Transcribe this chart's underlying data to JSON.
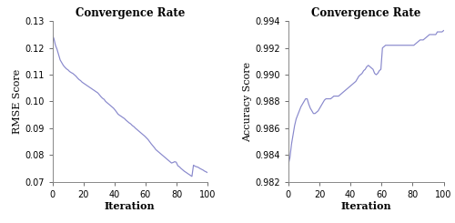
{
  "title": "Convergence Rate",
  "left_ylabel": "RMSE Score",
  "right_ylabel": "Accuracy Score",
  "xlabel": "Iteration",
  "line_color": "#8888cc",
  "left_ylim": [
    0.07,
    0.13
  ],
  "right_ylim": [
    0.982,
    0.994
  ],
  "left_yticks": [
    0.07,
    0.08,
    0.09,
    0.1,
    0.11,
    0.12,
    0.13
  ],
  "right_yticks": [
    0.982,
    0.984,
    0.986,
    0.988,
    0.99,
    0.992,
    0.994
  ],
  "xlim": [
    0,
    100
  ],
  "xticks": [
    0,
    20,
    40,
    60,
    80,
    100
  ],
  "rmse_y": [
    0.125,
    0.1235,
    0.122,
    0.12,
    0.1185,
    0.117,
    0.1155,
    0.1145,
    0.1135,
    0.113,
    0.1125,
    0.112,
    0.1115,
    0.111,
    0.1105,
    0.11,
    0.1095,
    0.1085,
    0.1075,
    0.107,
    0.1065,
    0.106,
    0.1055,
    0.105,
    0.1045,
    0.104,
    0.1035,
    0.103,
    0.102,
    0.101,
    0.1005,
    0.1,
    0.0995,
    0.099,
    0.0985,
    0.098,
    0.097,
    0.096,
    0.0955,
    0.095,
    0.0945,
    0.094,
    0.0935,
    0.093,
    0.0925,
    0.092,
    0.0915,
    0.091,
    0.09,
    0.0895,
    0.089,
    0.0885,
    0.088,
    0.0875,
    0.087,
    0.086,
    0.085,
    0.0845,
    0.084,
    0.0835,
    0.083,
    0.0825,
    0.082,
    0.0815,
    0.081,
    0.0805,
    0.08,
    0.0795,
    0.079,
    0.0785,
    0.078,
    0.0775,
    0.077,
    0.0765,
    0.076,
    0.0755,
    0.075,
    0.0765,
    0.077,
    0.0765,
    0.076,
    0.0755,
    0.075,
    0.0745,
    0.074,
    0.0735,
    0.073,
    0.0728,
    0.0726,
    0.0724,
    0.076,
    0.0758,
    0.0756,
    0.0754,
    0.0752,
    0.075,
    0.0748,
    0.0745,
    0.074,
    0.0737
  ],
  "acc_y": [
    0.9833,
    0.9838,
    0.9845,
    0.9852,
    0.9858,
    0.9863,
    0.9867,
    0.987,
    0.9872,
    0.9875,
    0.9877,
    0.9879,
    0.988,
    0.9878,
    0.9876,
    0.9874,
    0.9872,
    0.9871,
    0.9872,
    0.9873,
    0.9875,
    0.9877,
    0.9879,
    0.9881,
    0.9882,
    0.9882,
    0.9882,
    0.9882,
    0.9883,
    0.9883,
    0.9884,
    0.9884,
    0.9884,
    0.9884,
    0.9885,
    0.9886,
    0.9887,
    0.9887,
    0.9888,
    0.9889,
    0.989,
    0.9891,
    0.9892,
    0.9893,
    0.9895,
    0.9897,
    0.9899,
    0.9901,
    0.9902,
    0.9903,
    0.9904,
    0.9906,
    0.9906,
    0.9905,
    0.9905,
    0.9901,
    0.99,
    0.9901,
    0.9903,
    0.9904,
    0.992,
    0.9921,
    0.9922,
    0.9922,
    0.9922,
    0.9922,
    0.9922,
    0.9922,
    0.9922,
    0.9922,
    0.9922,
    0.9922,
    0.9922,
    0.9922,
    0.9922,
    0.9922,
    0.9922,
    0.9922,
    0.9922,
    0.9922,
    0.9922,
    0.9922,
    0.9923,
    0.9924,
    0.9925,
    0.9926,
    0.9927,
    0.9928,
    0.9929,
    0.993,
    0.993,
    0.993,
    0.993,
    0.993,
    0.993,
    0.9932,
    0.9932,
    0.9932,
    0.9932,
    0.9933
  ]
}
